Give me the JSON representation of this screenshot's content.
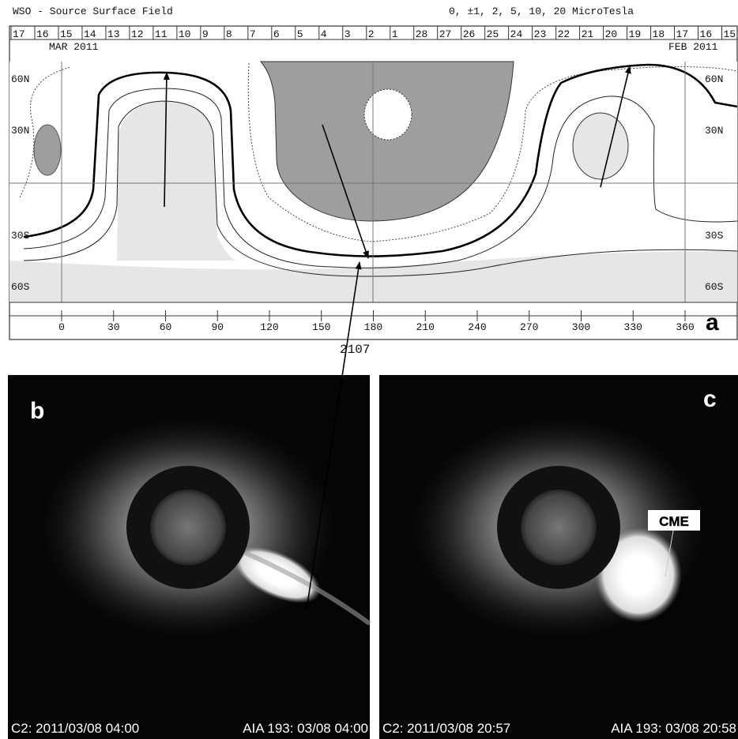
{
  "header": {
    "title": "WSO - Source Surface Field",
    "levels": "0, ±1, 2, 5, 10, 20 MicroTesla"
  },
  "map": {
    "days": [
      17,
      16,
      15,
      14,
      13,
      12,
      11,
      10,
      9,
      8,
      7,
      6,
      5,
      4,
      3,
      2,
      1,
      28,
      27,
      26,
      25,
      24,
      23,
      22,
      21,
      20,
      19,
      18,
      17,
      16,
      15
    ],
    "month_left": "MAR 2011",
    "month_right": "FEB 2011",
    "lat_labels": [
      "60N",
      "30N",
      "30S",
      "60S"
    ],
    "longitudes": [
      0,
      30,
      60,
      90,
      120,
      150,
      180,
      210,
      240,
      270,
      300,
      330,
      360
    ],
    "panel": "a",
    "rotation": "2107"
  },
  "images": [
    {
      "panel": "b",
      "left_caption": "C2: 2011/03/08 04:00",
      "right_caption": "AIA 193: 03/08 04:00"
    },
    {
      "panel": "c",
      "callout": "CME",
      "left_caption": "C2: 2011/03/08 20:57",
      "right_caption": "AIA 193: 03/08 20:58"
    }
  ]
}
